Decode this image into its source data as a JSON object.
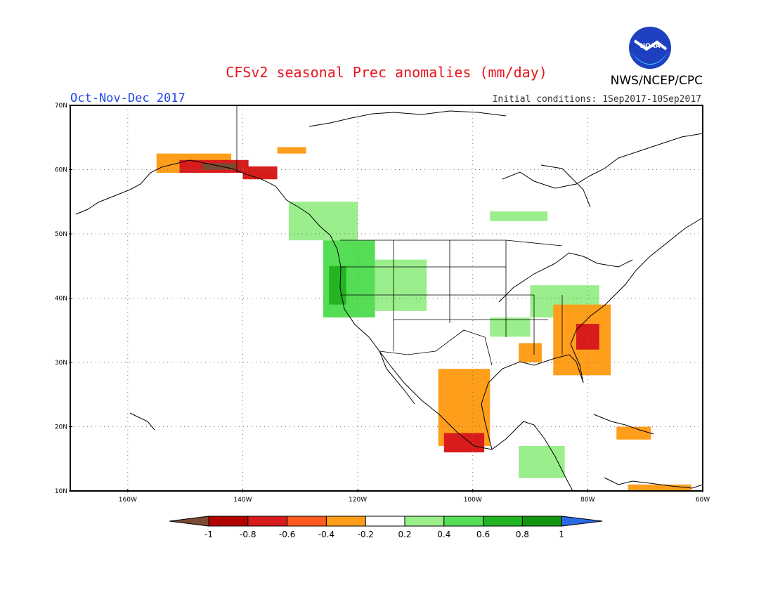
{
  "header": {
    "title": "CFSv2 seasonal Prec anomalies (mm/day)",
    "season": "Oct-Nov-Dec 2017",
    "initial_conditions": "Initial conditions: 1Sep2017-10Sep2017",
    "agency": "NWS/NCEP/CPC",
    "logo_text": "NOAA"
  },
  "map": {
    "lon_range": [
      -170,
      -60
    ],
    "lat_range": [
      10,
      70
    ],
    "lat_labels": [
      "10N",
      "20N",
      "30N",
      "40N",
      "50N",
      "60N",
      "70N"
    ],
    "lon_labels": [
      "160W",
      "140W",
      "120W",
      "100W",
      "80W",
      "60W"
    ],
    "lat_values": [
      10,
      20,
      30,
      40,
      50,
      60,
      70
    ],
    "lon_values": [
      -160,
      -140,
      -120,
      -100,
      -80,
      -60
    ]
  },
  "legend": {
    "labels": [
      "-1",
      "-0.8",
      "-0.6",
      "-0.4",
      "-0.2",
      "0.2",
      "0.4",
      "0.6",
      "0.8",
      "1"
    ],
    "colors": [
      "#7a4a32",
      "#b30000",
      "#d81c1c",
      "#ff5a1e",
      "#ff9e1a",
      "#ffffff",
      "#9aee8c",
      "#55dd55",
      "#22b422",
      "#129612",
      "#2a6ae6"
    ]
  },
  "anomalies": [
    {
      "name": "alaska-dry",
      "color": "#ff9e1a",
      "lon": [
        -155,
        -142
      ],
      "lat": [
        59.5,
        62.5
      ]
    },
    {
      "name": "alaska-strong-dry",
      "color": "#d81c1c",
      "lon": [
        -151,
        -139
      ],
      "lat": [
        59.5,
        61.5
      ]
    },
    {
      "name": "alaska-core",
      "color": "#7a4a32",
      "lon": [
        -147,
        -141
      ],
      "lat": [
        60,
        61
      ]
    },
    {
      "name": "yukon-dry",
      "color": "#ff9e1a",
      "lon": [
        -134,
        -129
      ],
      "lat": [
        62.5,
        63.5
      ]
    },
    {
      "name": "panhandle-dry",
      "color": "#d81c1c",
      "lon": [
        -140,
        -134
      ],
      "lat": [
        58.5,
        60.5
      ]
    },
    {
      "name": "pacific-nw-wet",
      "color": "#55dd55",
      "lon": [
        -126,
        -117
      ],
      "lat": [
        37,
        49
      ]
    },
    {
      "name": "pacific-nw-core",
      "color": "#22b422",
      "lon": [
        -125,
        -122
      ],
      "lat": [
        39,
        45
      ]
    },
    {
      "name": "great-basin-wet",
      "color": "#9aee8c",
      "lon": [
        -117,
        -108
      ],
      "lat": [
        38,
        46
      ]
    },
    {
      "name": "bc-wet",
      "color": "#9aee8c",
      "lon": [
        -132,
        -120
      ],
      "lat": [
        49,
        55
      ]
    },
    {
      "name": "quebec-wet",
      "color": "#9aee8c",
      "lon": [
        -97,
        -87
      ],
      "lat": [
        52,
        53.5
      ]
    },
    {
      "name": "ohio-valley-wet",
      "color": "#9aee8c",
      "lon": [
        -90,
        -78
      ],
      "lat": [
        37,
        42
      ]
    },
    {
      "name": "arkansas-wet",
      "color": "#9aee8c",
      "lon": [
        -97,
        -90
      ],
      "lat": [
        34,
        37
      ]
    },
    {
      "name": "southeast-dry",
      "color": "#ff9e1a",
      "lon": [
        -86,
        -76
      ],
      "lat": [
        28,
        39
      ]
    },
    {
      "name": "carolina-core",
      "color": "#d81c1c",
      "lon": [
        -82,
        -78
      ],
      "lat": [
        32,
        36
      ]
    },
    {
      "name": "gulf-coast-dry",
      "color": "#ff9e1a",
      "lon": [
        -92,
        -88
      ],
      "lat": [
        30,
        33
      ]
    },
    {
      "name": "mexico-dry",
      "color": "#ff9e1a",
      "lon": [
        -106,
        -97
      ],
      "lat": [
        17,
        29
      ]
    },
    {
      "name": "mexico-core",
      "color": "#d81c1c",
      "lon": [
        -105,
        -98
      ],
      "lat": [
        16,
        19
      ]
    },
    {
      "name": "central-america-wet",
      "color": "#9aee8c",
      "lon": [
        -92,
        -84
      ],
      "lat": [
        12,
        17
      ]
    },
    {
      "name": "caribbean-dry",
      "color": "#ff9e1a",
      "lon": [
        -75,
        -69
      ],
      "lat": [
        18,
        20
      ]
    },
    {
      "name": "venezuela-dry",
      "color": "#ff9e1a",
      "lon": [
        -73,
        -62
      ],
      "lat": [
        10,
        11
      ]
    }
  ]
}
